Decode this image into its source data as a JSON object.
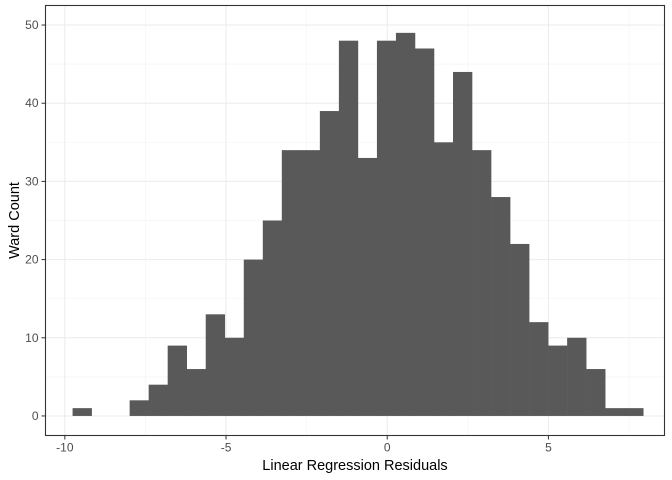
{
  "chart_data": {
    "type": "bar",
    "subtype": "histogram",
    "title": "",
    "xlabel": "Linear Regression Residuals",
    "ylabel": "Ward Count",
    "xlim": [
      -10.6,
      8.6
    ],
    "ylim": [
      -2.5,
      52.5
    ],
    "xticks": [
      -10,
      -5,
      0,
      5
    ],
    "xtick_labels": [
      "-10",
      "-5",
      "0",
      "5"
    ],
    "yticks": [
      0,
      10,
      20,
      30,
      40,
      50
    ],
    "ytick_labels": [
      "0",
      "10",
      "20",
      "30",
      "40",
      "50"
    ],
    "bin_width": 0.59,
    "bins": [
      {
        "start": -9.76,
        "count": 1
      },
      {
        "start": -9.17,
        "count": 0
      },
      {
        "start": -8.58,
        "count": 0
      },
      {
        "start": -7.99,
        "count": 2
      },
      {
        "start": -7.4,
        "count": 4
      },
      {
        "start": -6.81,
        "count": 9
      },
      {
        "start": -6.22,
        "count": 6
      },
      {
        "start": -5.63,
        "count": 13
      },
      {
        "start": -5.04,
        "count": 10
      },
      {
        "start": -4.45,
        "count": 20
      },
      {
        "start": -3.86,
        "count": 25
      },
      {
        "start": -3.27,
        "count": 34
      },
      {
        "start": -2.68,
        "count": 34
      },
      {
        "start": -2.09,
        "count": 39
      },
      {
        "start": -1.5,
        "count": 48
      },
      {
        "start": -0.91,
        "count": 33
      },
      {
        "start": -0.32,
        "count": 48
      },
      {
        "start": 0.27,
        "count": 49
      },
      {
        "start": 0.86,
        "count": 47
      },
      {
        "start": 1.45,
        "count": 35
      },
      {
        "start": 2.04,
        "count": 44
      },
      {
        "start": 2.63,
        "count": 34
      },
      {
        "start": 3.22,
        "count": 28
      },
      {
        "start": 3.81,
        "count": 22
      },
      {
        "start": 4.4,
        "count": 12
      },
      {
        "start": 4.99,
        "count": 9
      },
      {
        "start": 5.58,
        "count": 10
      },
      {
        "start": 6.17,
        "count": 6
      },
      {
        "start": 6.76,
        "count": 1
      },
      {
        "start": 7.35,
        "count": 1
      }
    ],
    "grid": true,
    "legend": "none",
    "colors": {
      "bar": "#595959",
      "grid_major": "#ebebeb",
      "grid_minor": "#f5f5f5",
      "panel_border": "#333333",
      "tick": "#333333",
      "tick_label": "#4d4d4d",
      "background": "#ffffff"
    }
  }
}
